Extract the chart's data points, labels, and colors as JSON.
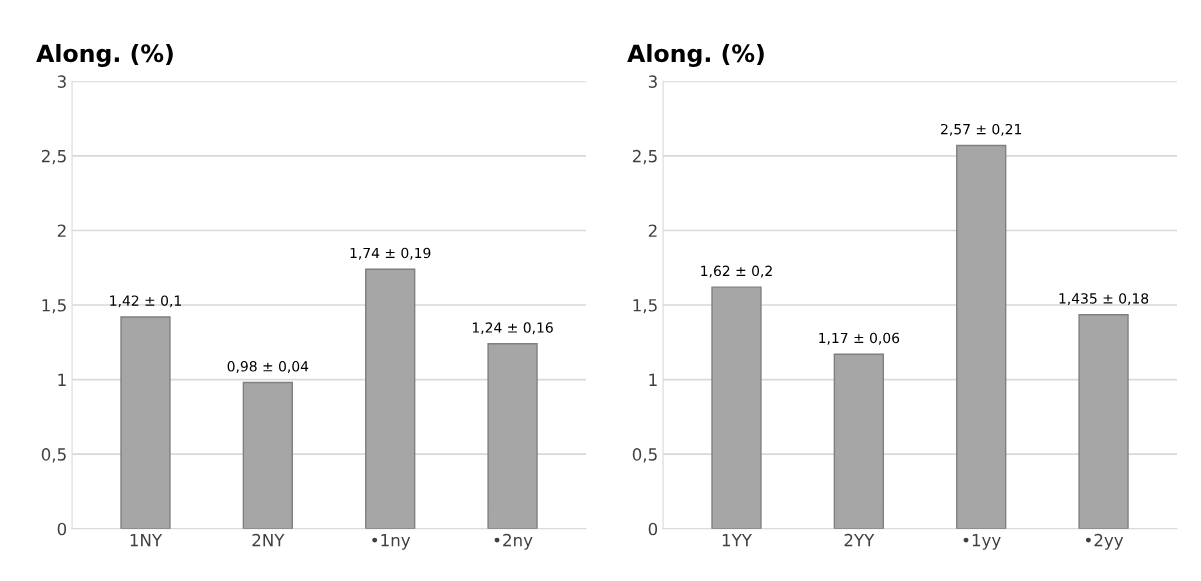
{
  "chart_data": [
    {
      "type": "bar",
      "title": "Along. (%)",
      "categories": [
        "1NY",
        "2NY",
        "•1ny",
        "•2ny"
      ],
      "values": [
        1.42,
        0.98,
        1.74,
        1.24
      ],
      "color": "#a6a6a6",
      "value_labels": [
        "1,42 ± 0,1",
        "0,98 ± 0,04",
        "1,74 ± 0,19",
        "1,24 ± 0,16"
      ],
      "ylim": [
        0,
        3
      ],
      "yticks": [
        0,
        {
          "value": 0.5,
          "label": "0,5"
        },
        1,
        {
          "value": 1.5,
          "label": "1,5"
        },
        2,
        {
          "value": 2.5,
          "label": "2,5"
        },
        3
      ],
      "grid": "y"
    },
    {
      "type": "bar",
      "title": "Along. (%)",
      "categories": [
        "1YY",
        "2YY",
        "•1yy",
        "•2yy"
      ],
      "values": [
        1.62,
        1.17,
        2.57,
        1.435
      ],
      "color": "#a6a6a6",
      "value_labels": [
        "1,62 ± 0,2",
        "1,17 ± 0,06",
        "2,57 ± 0,21",
        "1,435 ± 0,18"
      ],
      "ylim": [
        0,
        3
      ],
      "yticks": [
        0,
        {
          "value": 0.5,
          "label": "0,5"
        },
        1,
        {
          "value": 1.5,
          "label": "1,5"
        },
        2,
        {
          "value": 2.5,
          "label": "2,5"
        },
        3
      ],
      "grid": "y"
    }
  ]
}
